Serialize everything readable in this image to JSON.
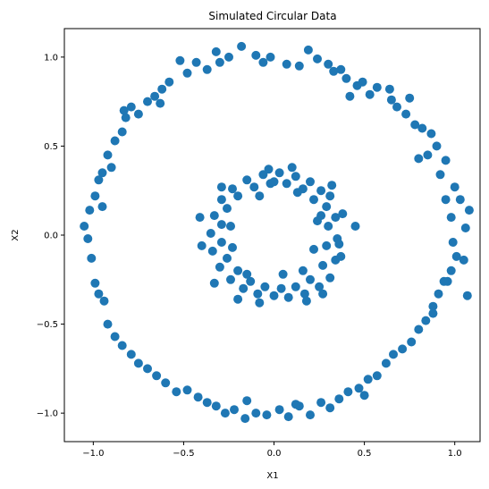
{
  "chart_data": {
    "type": "scatter",
    "title": "Simulated Circular Data",
    "xlabel": "X1",
    "ylabel": "X2",
    "xlim": [
      -1.16,
      1.14
    ],
    "ylim": [
      -1.16,
      1.16
    ],
    "xticks": [
      -1.0,
      -0.5,
      0.0,
      0.5,
      1.0
    ],
    "xtick_labels": [
      "−1.0",
      "−0.5",
      "0.0",
      "0.5",
      "1.0"
    ],
    "yticks": [
      -1.0,
      -0.5,
      0.0,
      0.5,
      1.0
    ],
    "ytick_labels": [
      "−1.0",
      "−0.5",
      "0.0",
      "0.5",
      "1.0"
    ],
    "grid": false,
    "marker_color": "#1f77b4",
    "series": [
      {
        "points": [
          [
            1.08,
            0.14
          ],
          [
            1.06,
            0.04
          ],
          [
            1.03,
            0.2
          ],
          [
            1.05,
            -0.14
          ],
          [
            1.07,
            -0.34
          ],
          [
            1.0,
            0.27
          ],
          [
            0.98,
            0.1
          ],
          [
            0.99,
            -0.04
          ],
          [
            0.96,
            -0.26
          ],
          [
            1.01,
            -0.12
          ],
          [
            0.95,
            0.2
          ],
          [
            0.92,
            0.34
          ],
          [
            0.9,
            0.5
          ],
          [
            0.88,
            -0.44
          ],
          [
            0.85,
            0.45
          ],
          [
            0.87,
            0.57
          ],
          [
            0.82,
            0.6
          ],
          [
            0.8,
            0.43
          ],
          [
            0.78,
            0.62
          ],
          [
            0.75,
            0.77
          ],
          [
            0.73,
            0.68
          ],
          [
            0.68,
            0.72
          ],
          [
            0.64,
            0.82
          ],
          [
            0.57,
            0.83
          ],
          [
            0.53,
            0.79
          ],
          [
            0.49,
            0.86
          ],
          [
            0.46,
            0.84
          ],
          [
            0.42,
            0.78
          ],
          [
            0.4,
            0.88
          ],
          [
            0.37,
            0.93
          ],
          [
            0.33,
            0.92
          ],
          [
            0.3,
            0.96
          ],
          [
            0.24,
            0.99
          ],
          [
            0.19,
            1.04
          ],
          [
            0.14,
            0.95
          ],
          [
            0.07,
            0.96
          ],
          [
            -0.02,
            1.0
          ],
          [
            -0.06,
            0.97
          ],
          [
            -0.1,
            1.01
          ],
          [
            -0.18,
            1.06
          ],
          [
            -0.25,
            1.0
          ],
          [
            -0.3,
            0.97
          ],
          [
            -0.32,
            1.03
          ],
          [
            -0.37,
            0.93
          ],
          [
            -0.43,
            0.97
          ],
          [
            -0.48,
            0.91
          ],
          [
            -0.52,
            0.98
          ],
          [
            -0.58,
            0.86
          ],
          [
            -0.62,
            0.82
          ],
          [
            -0.66,
            0.78
          ],
          [
            -0.7,
            0.75
          ],
          [
            -0.75,
            0.68
          ],
          [
            -0.79,
            0.72
          ],
          [
            -0.82,
            0.66
          ],
          [
            -0.84,
            0.58
          ],
          [
            -0.88,
            0.53
          ],
          [
            -0.92,
            0.45
          ],
          [
            -0.95,
            0.35
          ],
          [
            -0.97,
            0.31
          ],
          [
            -0.99,
            0.22
          ],
          [
            -1.02,
            0.14
          ],
          [
            -1.05,
            0.05
          ],
          [
            -1.03,
            -0.02
          ],
          [
            -1.01,
            -0.13
          ],
          [
            -0.99,
            -0.27
          ],
          [
            -0.97,
            -0.33
          ],
          [
            -0.94,
            -0.37
          ],
          [
            -0.92,
            -0.5
          ],
          [
            -0.88,
            -0.57
          ],
          [
            -0.84,
            -0.62
          ],
          [
            -0.79,
            -0.67
          ],
          [
            -0.75,
            -0.72
          ],
          [
            -0.7,
            -0.75
          ],
          [
            -0.65,
            -0.79
          ],
          [
            -0.6,
            -0.83
          ],
          [
            -0.54,
            -0.88
          ],
          [
            -0.48,
            -0.87
          ],
          [
            -0.42,
            -0.91
          ],
          [
            -0.37,
            -0.94
          ],
          [
            -0.32,
            -0.96
          ],
          [
            -0.27,
            -1.0
          ],
          [
            -0.22,
            -0.98
          ],
          [
            -0.16,
            -1.03
          ],
          [
            -0.1,
            -1.0
          ],
          [
            -0.04,
            -1.01
          ],
          [
            0.03,
            -0.98
          ],
          [
            0.08,
            -1.02
          ],
          [
            0.14,
            -0.96
          ],
          [
            0.2,
            -1.01
          ],
          [
            0.26,
            -0.94
          ],
          [
            0.31,
            -0.97
          ],
          [
            0.36,
            -0.92
          ],
          [
            0.41,
            -0.88
          ],
          [
            0.47,
            -0.86
          ],
          [
            0.52,
            -0.81
          ],
          [
            0.57,
            -0.79
          ],
          [
            0.62,
            -0.72
          ],
          [
            0.66,
            -0.67
          ],
          [
            0.71,
            -0.64
          ],
          [
            0.76,
            -0.6
          ],
          [
            0.8,
            -0.53
          ],
          [
            0.84,
            -0.48
          ],
          [
            0.88,
            -0.4
          ],
          [
            0.91,
            -0.33
          ],
          [
            0.94,
            -0.26
          ],
          [
            -0.95,
            0.16
          ],
          [
            -0.9,
            0.38
          ],
          [
            -0.83,
            0.7
          ],
          [
            0.95,
            0.42
          ],
          [
            0.98,
            -0.2
          ],
          [
            0.12,
            -0.95
          ],
          [
            -0.15,
            -0.93
          ],
          [
            0.65,
            0.76
          ],
          [
            -0.63,
            0.74
          ],
          [
            0.5,
            -0.9
          ]
        ]
      },
      {
        "points": [
          [
            0.31,
            0.22
          ],
          [
            0.34,
            0.1
          ],
          [
            0.35,
            -0.02
          ],
          [
            0.34,
            -0.14
          ],
          [
            0.31,
            -0.24
          ],
          [
            0.25,
            -0.29
          ],
          [
            0.17,
            -0.33
          ],
          [
            0.08,
            -0.35
          ],
          [
            0.0,
            -0.34
          ],
          [
            -0.09,
            -0.33
          ],
          [
            -0.17,
            -0.3
          ],
          [
            -0.24,
            -0.25
          ],
          [
            -0.3,
            -0.18
          ],
          [
            -0.34,
            -0.09
          ],
          [
            -0.35,
            0.01
          ],
          [
            -0.33,
            0.11
          ],
          [
            -0.29,
            0.2
          ],
          [
            -0.23,
            0.26
          ],
          [
            -0.15,
            0.31
          ],
          [
            -0.06,
            0.34
          ],
          [
            0.03,
            0.35
          ],
          [
            0.12,
            0.33
          ],
          [
            0.2,
            0.3
          ],
          [
            0.26,
            0.25
          ],
          [
            0.29,
            0.16
          ],
          [
            0.3,
            0.05
          ],
          [
            0.29,
            -0.06
          ],
          [
            0.27,
            -0.17
          ],
          [
            0.2,
            -0.25
          ],
          [
            0.12,
            -0.29
          ],
          [
            0.04,
            -0.3
          ],
          [
            -0.05,
            -0.29
          ],
          [
            -0.13,
            -0.26
          ],
          [
            -0.2,
            -0.2
          ],
          [
            -0.26,
            -0.13
          ],
          [
            -0.29,
            -0.04
          ],
          [
            -0.29,
            0.06
          ],
          [
            -0.26,
            0.15
          ],
          [
            -0.2,
            0.22
          ],
          [
            -0.11,
            0.27
          ],
          [
            -0.02,
            0.29
          ],
          [
            0.07,
            0.29
          ],
          [
            0.16,
            0.26
          ],
          [
            0.22,
            0.2
          ],
          [
            0.26,
            0.11
          ],
          [
            0.38,
            0.12
          ],
          [
            0.36,
            -0.05
          ],
          [
            0.37,
            -0.12
          ],
          [
            0.24,
            0.08
          ],
          [
            0.22,
            -0.08
          ],
          [
            0.13,
            0.24
          ],
          [
            -0.08,
            0.22
          ],
          [
            -0.24,
            0.05
          ],
          [
            -0.23,
            -0.07
          ],
          [
            -0.15,
            -0.22
          ],
          [
            0.05,
            -0.22
          ],
          [
            0.16,
            -0.2
          ],
          [
            0.45,
            0.05
          ],
          [
            -0.41,
            0.1
          ],
          [
            -0.4,
            -0.06
          ],
          [
            0.1,
            0.38
          ],
          [
            -0.03,
            0.37
          ],
          [
            0.18,
            -0.37
          ],
          [
            -0.2,
            -0.36
          ],
          [
            0.27,
            -0.33
          ],
          [
            -0.33,
            -0.27
          ],
          [
            0.32,
            0.28
          ],
          [
            -0.29,
            0.27
          ],
          [
            0.0,
            0.3
          ],
          [
            -0.08,
            -0.38
          ]
        ]
      }
    ]
  }
}
